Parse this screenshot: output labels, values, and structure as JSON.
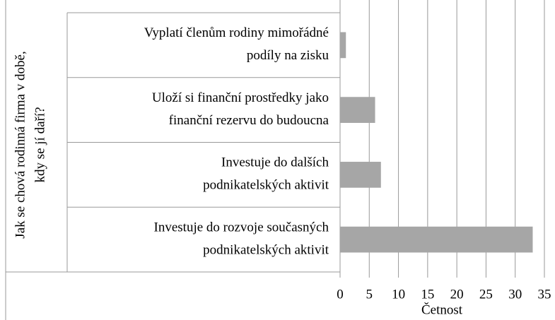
{
  "chart_data": {
    "type": "barh",
    "y_label": [
      "Jak se chová rodinná firma v době,",
      "kdy se jí daří?"
    ],
    "x_label": "Četnost",
    "categories": [
      [
        "Vyplatí členům rodiny mimořádné",
        "podíly na zisku"
      ],
      [
        "Uloží si finanční prostředky jako",
        "finanční rezervu do budoucna"
      ],
      [
        "Investuje do dalších",
        "podnikatelských aktivit"
      ],
      [
        "Investuje do rozvoje současných",
        "podnikatelských aktivit"
      ]
    ],
    "values": [
      1,
      6,
      7,
      33
    ],
    "color": "#a6a6a6",
    "xlim": [
      0,
      35
    ],
    "xticks": [
      0,
      5,
      10,
      15,
      20,
      25,
      30,
      35
    ],
    "grid": true
  }
}
